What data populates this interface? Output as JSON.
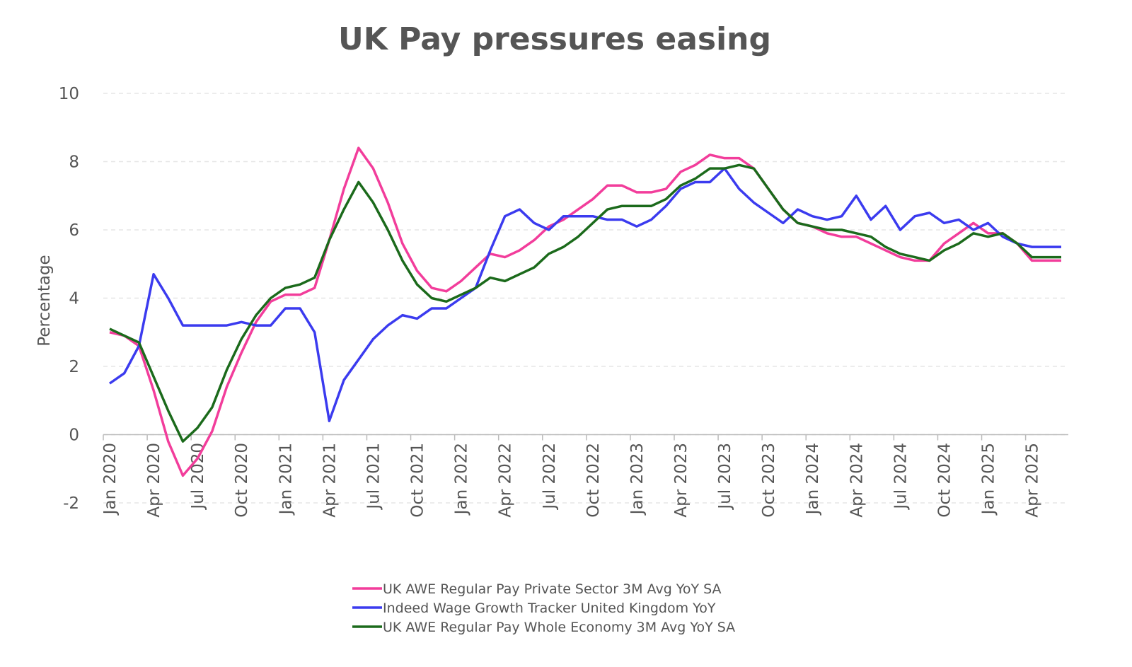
{
  "chart_data": {
    "type": "line",
    "title": "UK Pay pressures easing",
    "y_label": "Percentage",
    "categories": [
      "Jan 2020",
      null,
      null,
      "Apr 2020",
      null,
      null,
      "Jul 2020",
      null,
      null,
      "Oct 2020",
      null,
      null,
      "Jan 2021",
      null,
      null,
      "Apr 2021",
      null,
      null,
      "Jul 2021",
      null,
      null,
      "Oct 2021",
      null,
      null,
      "Jan 2022",
      null,
      null,
      "Apr 2022",
      null,
      null,
      "Jul 2022",
      null,
      null,
      "Oct 2022",
      null,
      null,
      "Jan 2023",
      null,
      null,
      "Apr 2023",
      null,
      null,
      "Jul 2023",
      null,
      null,
      "Oct 2023",
      null,
      null,
      "Jan 2024",
      null,
      null,
      "Apr 2024",
      null,
      null,
      "Jul 2024",
      null,
      null,
      "Oct 2024",
      null,
      null,
      "Jan 2025",
      null,
      null,
      "Apr 2025",
      null,
      null
    ],
    "series": [
      {
        "name": "UK AWE Regular Pay Private Sector 3M Avg YoY SA",
        "color": "#f23d9b",
        "values": [
          3.0,
          2.9,
          2.6,
          1.3,
          -0.2,
          -1.2,
          -0.7,
          0.1,
          1.4,
          2.4,
          3.3,
          3.9,
          4.1,
          4.1,
          4.3,
          5.7,
          7.2,
          8.4,
          7.8,
          6.8,
          5.6,
          4.8,
          4.3,
          4.2,
          4.5,
          4.9,
          5.3,
          5.2,
          5.4,
          5.7,
          6.1,
          6.3,
          6.6,
          6.9,
          7.3,
          7.3,
          7.1,
          7.1,
          7.2,
          7.7,
          7.9,
          8.2,
          8.1,
          8.1,
          7.8,
          7.2,
          6.6,
          6.2,
          6.1,
          5.9,
          5.8,
          5.8,
          5.6,
          5.4,
          5.2,
          5.1,
          5.1,
          5.6,
          5.9,
          6.2,
          5.9,
          5.9,
          5.6,
          5.1,
          5.1,
          5.1
        ]
      },
      {
        "name": "Indeed Wage Growth Tracker United Kingdom YoY",
        "color": "#3b3bef",
        "values": [
          1.5,
          1.8,
          2.6,
          4.7,
          4.0,
          3.2,
          3.2,
          3.2,
          3.2,
          3.3,
          3.2,
          3.2,
          3.7,
          3.7,
          3.0,
          0.4,
          1.6,
          2.2,
          2.8,
          3.2,
          3.5,
          3.4,
          3.7,
          3.7,
          4.0,
          4.3,
          5.4,
          6.4,
          6.6,
          6.2,
          6.0,
          6.4,
          6.4,
          6.4,
          6.3,
          6.3,
          6.1,
          6.3,
          6.7,
          7.2,
          7.4,
          7.4,
          7.8,
          7.2,
          6.8,
          6.5,
          6.2,
          6.6,
          6.4,
          6.3,
          6.4,
          7.0,
          6.3,
          6.7,
          6.0,
          6.4,
          6.5,
          6.2,
          6.3,
          6.0,
          6.2,
          5.8,
          5.6,
          5.5,
          5.5,
          5.5
        ]
      },
      {
        "name": "UK AWE Regular Pay Whole Economy 3M Avg YoY SA",
        "color": "#1b6a1b",
        "values": [
          3.1,
          2.9,
          2.7,
          1.7,
          0.7,
          -0.2,
          0.2,
          0.8,
          1.9,
          2.8,
          3.5,
          4.0,
          4.3,
          4.4,
          4.6,
          5.7,
          6.6,
          7.4,
          6.8,
          6.0,
          5.1,
          4.4,
          4.0,
          3.9,
          4.1,
          4.3,
          4.6,
          4.5,
          4.7,
          4.9,
          5.3,
          5.5,
          5.8,
          6.2,
          6.6,
          6.7,
          6.7,
          6.7,
          6.9,
          7.3,
          7.5,
          7.8,
          7.8,
          7.9,
          7.8,
          7.2,
          6.6,
          6.2,
          6.1,
          6.0,
          6.0,
          5.9,
          5.8,
          5.5,
          5.3,
          5.2,
          5.1,
          5.4,
          5.6,
          5.9,
          5.8,
          5.9,
          5.6,
          5.2,
          5.2,
          5.2
        ]
      }
    ],
    "ylim": [
      -2,
      10
    ],
    "yticks": [
      -2,
      0,
      2,
      4,
      6,
      8,
      10
    ],
    "grid": true,
    "legend": "bottom"
  }
}
